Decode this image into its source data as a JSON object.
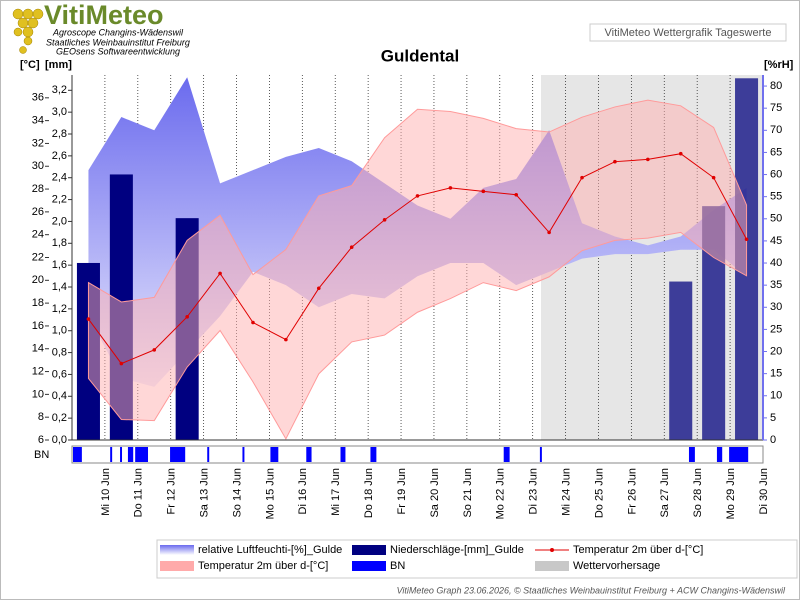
{
  "header": {
    "logo": "VitiMeteo",
    "lines": [
      "Agroscope Changins-Wädenswil",
      "Staatliches Weinbauinstitut Freiburg",
      "GEOsens Softwareentwicklung"
    ],
    "box": "VitiMeteo Wettergrafik Tageswerte"
  },
  "footer": "VitiMeteo Graph 23.06.2026, © Staatliches Weinbauinstitut Freiburg + ACW Changins-Wädenswil",
  "chart_data": {
    "type": "weather",
    "title": "Guldental",
    "y_label": "[°C]",
    "y3_label": "[mm]",
    "y2_label": "[%rH]",
    "strip_label": "BN",
    "categories": [
      "Mi 10 Jun",
      "Do 11 Jun",
      "Fr 12 Jun",
      "Sa 13 Jun",
      "So 14 Jun",
      "Mo 15 Jun",
      "Di 16 Jun",
      "Mi 17 Jun",
      "Do 18 Jun",
      "Fr 19 Jun",
      "Sa 20 Jun",
      "So 21 Jun",
      "Mo 22 Jun",
      "Di 23 Jun",
      "Mi 24 Jun",
      "Do 25 Jun",
      "Fr 26 Jun",
      "Sa 27 Jun",
      "So 28 Jun",
      "Mo 29 Jun",
      "Di 30 Jun"
    ],
    "ylim": [
      6,
      38
    ],
    "yticks": [
      6,
      8,
      10,
      12,
      14,
      16,
      18,
      20,
      22,
      24,
      26,
      28,
      30,
      32,
      34,
      36
    ],
    "y3lim": [
      0,
      3.34
    ],
    "y3ticks": [
      {
        "value": 0,
        "label": "0,0"
      },
      {
        "value": 0.2,
        "label": "0,2"
      },
      {
        "value": 0.4,
        "label": "0,4"
      },
      {
        "value": 0.6,
        "label": "0,6"
      },
      {
        "value": 0.8,
        "label": "0,8"
      },
      {
        "value": 1.0,
        "label": "1,0"
      },
      {
        "value": 1.2,
        "label": "1,2"
      },
      {
        "value": 1.4,
        "label": "1,4"
      },
      {
        "value": 1.6,
        "label": "1,6"
      },
      {
        "value": 1.8,
        "label": "1,8"
      },
      {
        "value": 2.0,
        "label": "2,0"
      },
      {
        "value": 2.2,
        "label": "2,2"
      },
      {
        "value": 2.4,
        "label": "2,4"
      },
      {
        "value": 2.6,
        "label": "2,6"
      },
      {
        "value": 2.8,
        "label": "2,8"
      },
      {
        "value": 3.0,
        "label": "3,0"
      },
      {
        "value": 3.2,
        "label": "3,2"
      }
    ],
    "y2lim": [
      0,
      82.5
    ],
    "y2ticks": [
      0,
      5,
      10,
      15,
      20,
      25,
      30,
      35,
      40,
      45,
      50,
      55,
      60,
      65,
      70,
      75,
      80
    ],
    "series": [
      {
        "name": "relative Luftfeuchti-[%]_Gulde",
        "kind": "band",
        "axis": "y2",
        "color": "#7070ee",
        "max": [
          61,
          73,
          70,
          82,
          58,
          61,
          64,
          66,
          63,
          58,
          53,
          50,
          57,
          59,
          70,
          49,
          46,
          44,
          46,
          52,
          57
        ],
        "min": [
          28,
          14,
          12,
          20,
          28,
          38,
          35,
          30,
          33,
          32,
          37,
          40,
          40,
          35,
          38,
          41,
          42,
          42,
          43,
          43,
          37
        ]
      },
      {
        "name": "Niederschläge-[mm]_Gulde",
        "kind": "bar",
        "axis": "y3",
        "color": "#000080",
        "values": [
          1.62,
          2.43,
          0,
          2.03,
          0,
          0,
          0,
          0,
          0,
          0,
          0,
          0,
          0,
          0,
          0,
          0,
          0,
          0,
          1.45,
          2.14,
          3.31
        ]
      },
      {
        "name": "Temperatur 2m über d-[°C]",
        "kind": "line",
        "color": "#e00000",
        "values": [
          16.6,
          12.7,
          13.9,
          16.8,
          20.6,
          16.3,
          14.8,
          19.3,
          22.9,
          25.3,
          27.4,
          28.1,
          27.8,
          27.5,
          24.2,
          29.0,
          30.4,
          30.6,
          31.1,
          29.0,
          23.6
        ]
      },
      {
        "name": "Temperatur 2m über d-[°C]",
        "kind": "band",
        "color": "#ffaaaa",
        "max": [
          19.8,
          18.1,
          18.5,
          23.5,
          25.7,
          20.5,
          22.7,
          27.4,
          28.3,
          32.5,
          35.0,
          34.8,
          34.2,
          33.3,
          33.0,
          34.3,
          35.2,
          35.8,
          35.3,
          33.4,
          26.6
        ],
        "min": [
          11.4,
          7.8,
          7.7,
          12.4,
          15.6,
          11.1,
          6.1,
          11.8,
          14.6,
          15.2,
          17.2,
          18.4,
          19.8,
          19.1,
          20.3,
          22.6,
          23.5,
          23.7,
          24.2,
          22.0,
          20.4
        ]
      },
      {
        "name": "BN",
        "kind": "strip",
        "color": "#0000ff",
        "intervals": [
          [
            0.03,
            0.3
          ],
          [
            1.16,
            1.22
          ],
          [
            1.46,
            1.52
          ],
          [
            1.7,
            1.86
          ],
          [
            1.92,
            2.31
          ],
          [
            2.98,
            3.44
          ],
          [
            4.11,
            4.17
          ],
          [
            5.18,
            5.24
          ],
          [
            6.03,
            6.27
          ],
          [
            7.12,
            7.28
          ],
          [
            8.16,
            8.31
          ],
          [
            9.07,
            9.25
          ],
          [
            13.12,
            13.3
          ],
          [
            14.22,
            14.28
          ],
          [
            18.75,
            18.93
          ],
          [
            19.6,
            19.76
          ],
          [
            19.97,
            20.55
          ]
        ]
      },
      {
        "name": "Wettervorhersage",
        "kind": "forecast",
        "color": "#c8c8c8"
      }
    ]
  }
}
